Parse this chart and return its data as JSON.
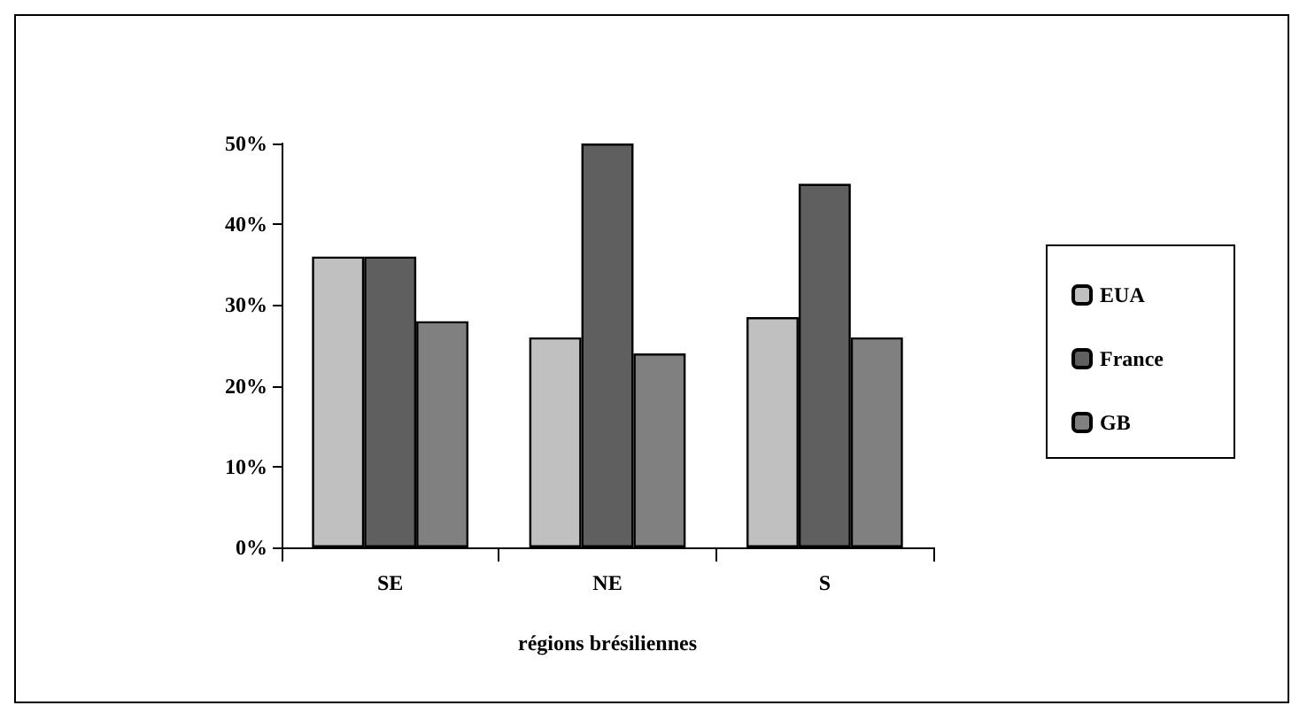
{
  "chart_data": {
    "type": "bar",
    "xlabel": "régions brésiliennes",
    "categories": [
      "SE",
      "NE",
      "S"
    ],
    "series": [
      {
        "name": "EUA",
        "color": "#c0c0c0",
        "values": [
          36,
          26,
          28.5
        ]
      },
      {
        "name": "France",
        "color": "#5f5f5f",
        "values": [
          36,
          50,
          45
        ]
      },
      {
        "name": "GB",
        "color": "#808080",
        "values": [
          28,
          24,
          26
        ]
      }
    ],
    "ylim": [
      0,
      50
    ],
    "yticks": [
      {
        "value": 0,
        "label": "0%"
      },
      {
        "value": 10,
        "label": "10%"
      },
      {
        "value": 20,
        "label": "20%"
      },
      {
        "value": 30,
        "label": "30%"
      },
      {
        "value": 40,
        "label": "40%"
      },
      {
        "value": 50,
        "label": "50%"
      }
    ],
    "grid": false,
    "legend": "right"
  }
}
